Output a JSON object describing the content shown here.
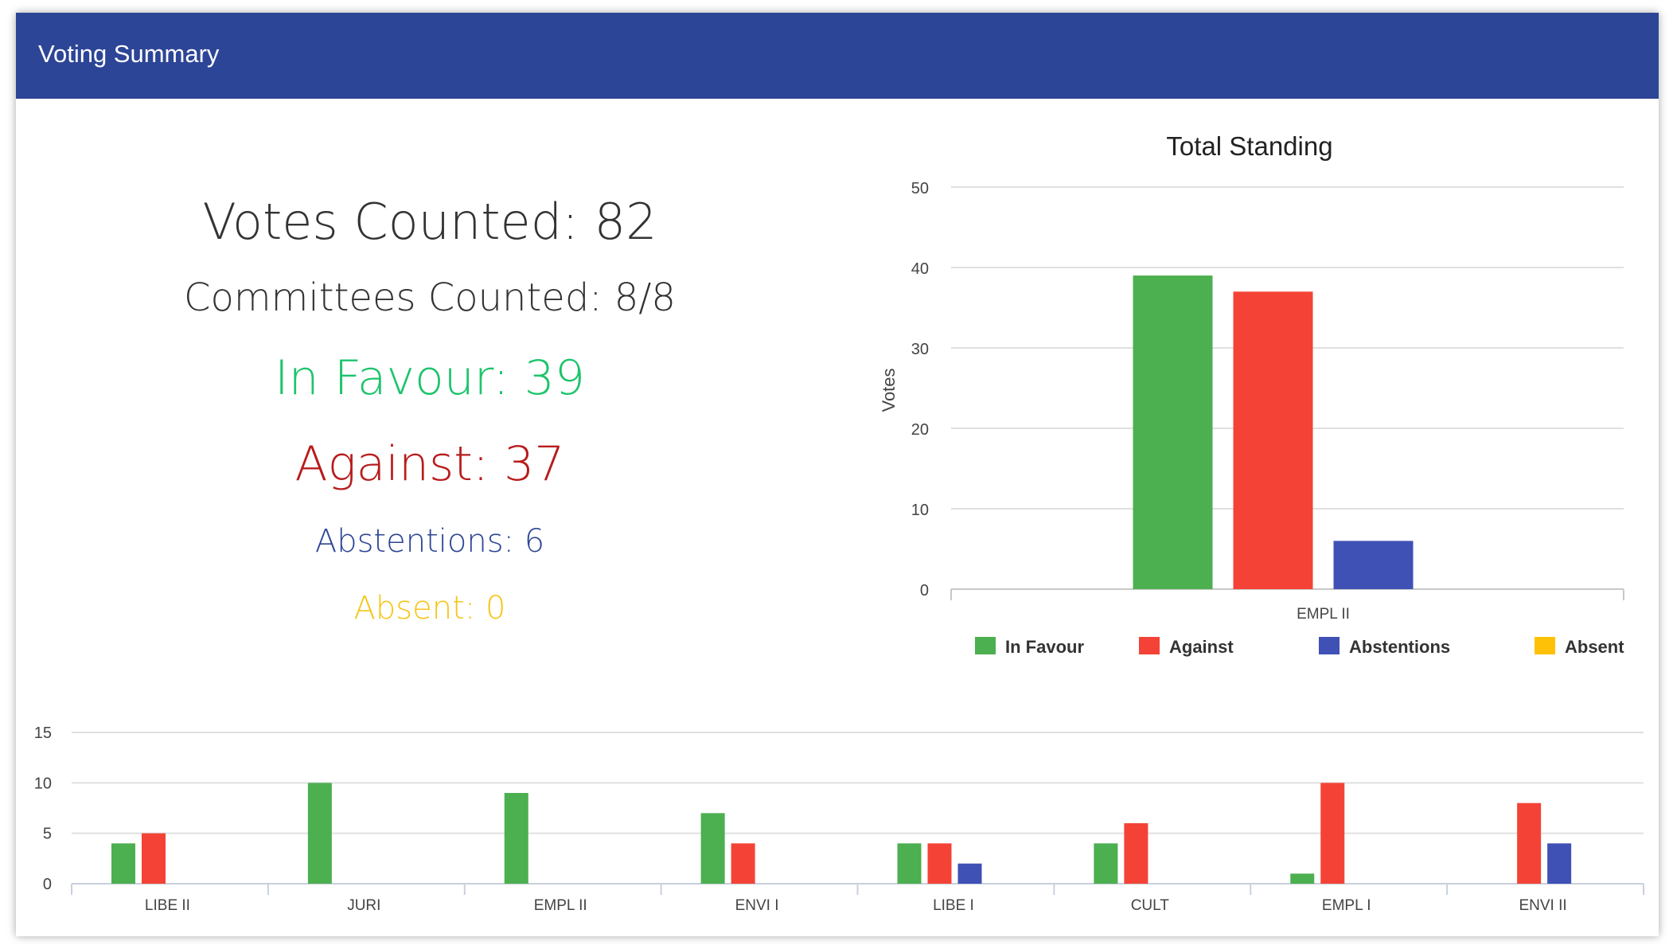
{
  "window": {
    "title": "Voting Summary"
  },
  "summary": {
    "votes_counted": "Votes Counted: 82",
    "committees_counted": "Committees Counted: 8/8",
    "in_favour": "In Favour: 39",
    "against": "Against: 37",
    "abstentions": "Abstentions: 6",
    "absent": "Absent: 0"
  },
  "colors": {
    "header_bg": "#2d4596",
    "in_favour": "#4caf50",
    "against": "#f44336",
    "abstentions": "#3f51b5",
    "absent": "#ffc107",
    "text_favour": "#1ec46c",
    "text_against": "#b71c1c",
    "text_abstentions": "#2d4596",
    "text_absent": "#f5c518"
  },
  "chart_data": [
    {
      "type": "bar",
      "title": "Total Standing",
      "xlabel": "",
      "ylabel": "Votes",
      "categories": [
        "EMPL II"
      ],
      "series": [
        {
          "name": "In Favour",
          "values": [
            39
          ]
        },
        {
          "name": "Against",
          "values": [
            37
          ]
        },
        {
          "name": "Abstentions",
          "values": [
            6
          ]
        },
        {
          "name": "Absent",
          "values": [
            0
          ]
        }
      ],
      "ylim": [
        0,
        50
      ],
      "yticks": [
        0,
        10,
        20,
        30,
        40,
        50
      ],
      "grid": true,
      "legend": "bottom"
    },
    {
      "type": "bar",
      "title": "",
      "xlabel": "",
      "ylabel": "",
      "categories": [
        "LIBE II",
        "JURI",
        "EMPL II",
        "ENVI I",
        "LIBE I",
        "CULT",
        "EMPL I",
        "ENVI II"
      ],
      "series": [
        {
          "name": "In Favour",
          "values": [
            4,
            10,
            9,
            7,
            4,
            4,
            1,
            0
          ]
        },
        {
          "name": "Against",
          "values": [
            5,
            0,
            0,
            4,
            4,
            6,
            10,
            8
          ]
        },
        {
          "name": "Abstentions",
          "values": [
            0,
            0,
            0,
            0,
            2,
            0,
            0,
            4
          ]
        },
        {
          "name": "Absent",
          "values": [
            0,
            0,
            0,
            0,
            0,
            0,
            0,
            0
          ]
        }
      ],
      "ylim": [
        0,
        15
      ],
      "yticks": [
        0,
        5,
        10,
        15
      ],
      "grid": true,
      "legend": "none"
    }
  ]
}
